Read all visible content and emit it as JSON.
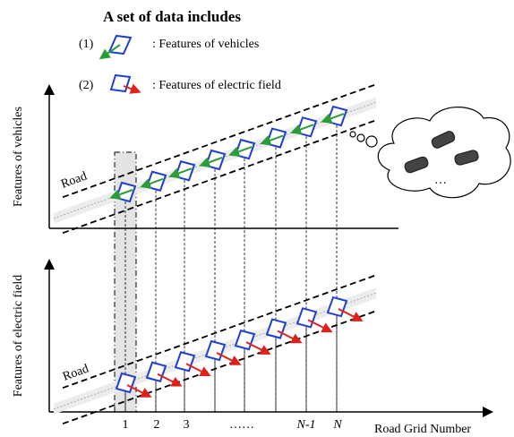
{
  "header": {
    "title": "A set of data includes"
  },
  "legend": [
    {
      "index": "(1)",
      "label": ": Features of vehicles"
    },
    {
      "index": "(2)",
      "label": ": Features of electric field"
    }
  ],
  "panels": [
    {
      "axis_label": "Features of vehicles",
      "road_label": "Road"
    },
    {
      "axis_label": "Features of electric field",
      "road_label": "Road"
    }
  ],
  "x_axis": {
    "ticks": [
      "1",
      "2",
      "3",
      "……",
      "N-1",
      "N"
    ],
    "label": "Road Grid Number"
  },
  "cloud": {
    "ellipsis": "…"
  }
}
